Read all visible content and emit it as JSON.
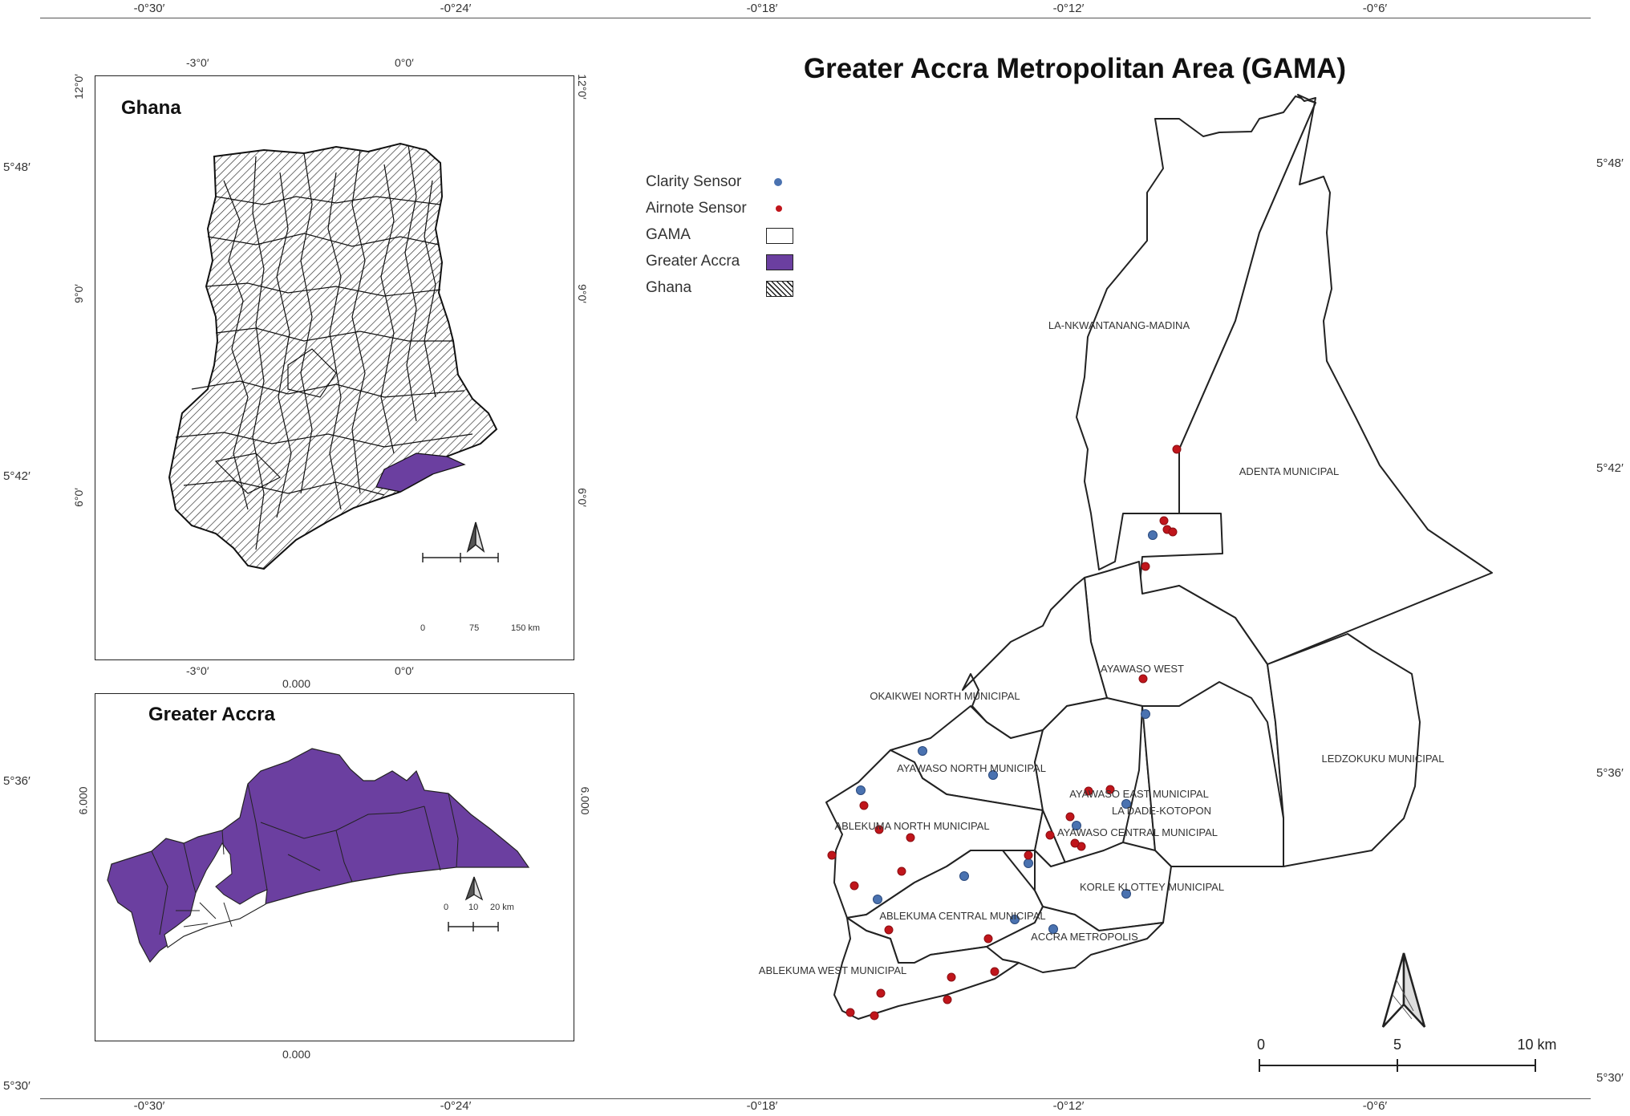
{
  "title": "Greater Accra Metropolitan Area (GAMA)",
  "graticule": {
    "top_lon": [
      "-0°30′",
      "-0°24′",
      "-0°18′",
      "-0°12′",
      "-0°6′"
    ],
    "bottom_lon": [
      "-0°30′",
      "-0°24′",
      "-0°18′",
      "-0°12′",
      "-0°6′"
    ],
    "left_lat": [
      "5°48′",
      "5°42′",
      "5°36′",
      "5°30′"
    ],
    "right_lat": [
      "5°48′",
      "5°42′",
      "5°36′",
      "5°30′"
    ]
  },
  "legend": {
    "items": [
      {
        "label": "Clarity Sensor",
        "symbol": "dot",
        "color": "#4a72b0"
      },
      {
        "label": "Airnote Sensor",
        "symbol": "dot",
        "color": "#c0151b"
      },
      {
        "label": "GAMA",
        "symbol": "box-white"
      },
      {
        "label": "Greater Accra",
        "symbol": "box-purple",
        "color": "#6b3fa0"
      },
      {
        "label": "Ghana",
        "symbol": "box-hatched"
      }
    ]
  },
  "inset_ghana": {
    "title": "Ghana",
    "top_ticks": [
      "-3°0′",
      "0°0′"
    ],
    "bottom_ticks": [
      "-3°0′",
      "0°0′"
    ],
    "left_ticks": [
      "12°0′",
      "9°0′",
      "6°0′"
    ],
    "right_ticks": [
      "12°0′",
      "9°0′",
      "6°0′"
    ],
    "scale": [
      "0",
      "75",
      "150 km"
    ]
  },
  "inset_accra": {
    "title": "Greater Accra",
    "top_tick": "0.000",
    "bottom_tick": "0.000",
    "left_tick": "6.000",
    "right_tick": "6.000",
    "scale": [
      "0",
      "10",
      "20 km"
    ]
  },
  "districts": [
    "LA-NKWANTANANG-MADINA",
    "ADENTA MUNICIPAL",
    "AYAWASO WEST",
    "OKAIKWEI NORTH MUNICIPAL",
    "AYAWASO NORTH MUNICIPAL",
    "LEDZOKUKU MUNICIPAL",
    "AYAWASO EAST MUNICIPAL",
    "LA DADE-KOTOPON",
    "ABLEKUMA NORTH MUNICIPAL",
    "AYAWASO CENTRAL MUNICIPAL",
    "KORLE KLOTTEY MUNICIPAL",
    "ABLEKUMA CENTRAL MUNICIPAL",
    "ACCRA METROPOLIS",
    "ABLEKUMA WEST MUNICIPAL"
  ],
  "scale_bar": [
    "0",
    "5",
    "10 km"
  ],
  "colors": {
    "clarity": "#4a72b0",
    "airnote": "#c0151b",
    "accra_purple": "#6b3fa0"
  }
}
